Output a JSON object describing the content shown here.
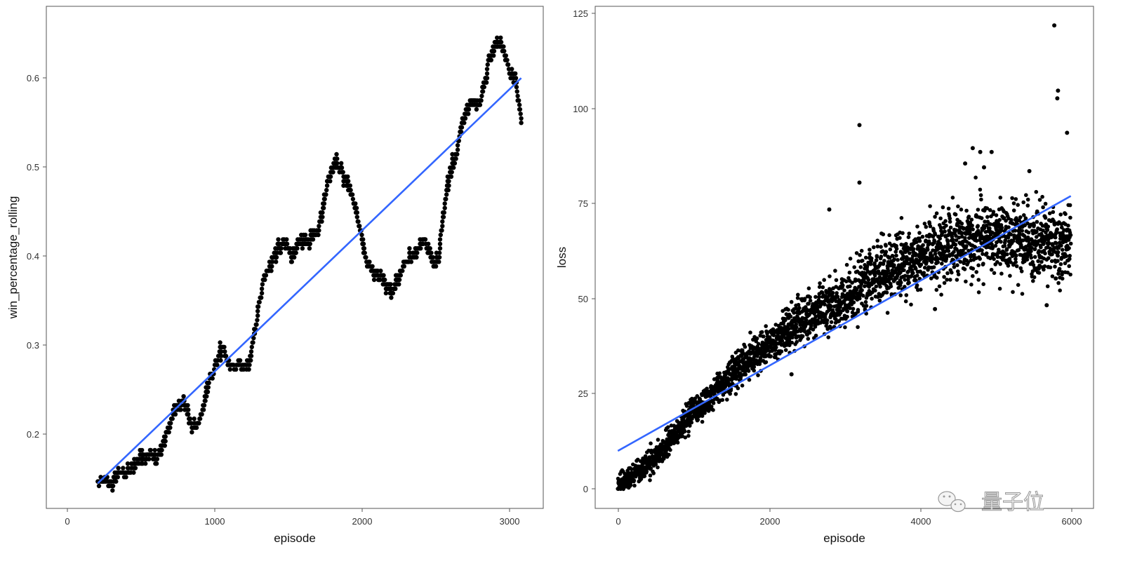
{
  "chart_data": [
    {
      "type": "scatter",
      "xlabel": "episode",
      "ylabel": "win_percentage_rolling",
      "xlim": [
        -150,
        3230
      ],
      "ylim": [
        0.12,
        0.68
      ],
      "xticks": [
        0,
        1000,
        2000,
        3000
      ],
      "yticks": [
        0.2,
        0.3,
        0.4,
        0.5,
        0.6
      ],
      "xtick_labels": [
        "0",
        "1000",
        "2000",
        "3000"
      ],
      "ytick_labels": [
        "0.2",
        "0.3",
        "0.4",
        "0.5",
        "0.6"
      ],
      "grid": false,
      "point_color": "#000000",
      "trend_color": "#3366FF",
      "step_quantum": 0.005,
      "series": [
        {
          "values_knots": [
            [
              200,
              0.15
            ],
            [
              260,
              0.15
            ],
            [
              300,
              0.145
            ],
            [
              350,
              0.16
            ],
            [
              420,
              0.16
            ],
            [
              480,
              0.175
            ],
            [
              560,
              0.18
            ],
            [
              620,
              0.175
            ],
            [
              660,
              0.2
            ],
            [
              720,
              0.225
            ],
            [
              780,
              0.24
            ],
            [
              820,
              0.22
            ],
            [
              860,
              0.21
            ],
            [
              900,
              0.22
            ],
            [
              960,
              0.265
            ],
            [
              1000,
              0.28
            ],
            [
              1050,
              0.3
            ],
            [
              1090,
              0.28
            ],
            [
              1180,
              0.28
            ],
            [
              1230,
              0.28
            ],
            [
              1280,
              0.33
            ],
            [
              1330,
              0.38
            ],
            [
              1380,
              0.39
            ],
            [
              1420,
              0.41
            ],
            [
              1480,
              0.415
            ],
            [
              1520,
              0.4
            ],
            [
              1580,
              0.42
            ],
            [
              1650,
              0.42
            ],
            [
              1700,
              0.43
            ],
            [
              1760,
              0.48
            ],
            [
              1810,
              0.505
            ],
            [
              1850,
              0.5
            ],
            [
              1900,
              0.48
            ],
            [
              1950,
              0.46
            ],
            [
              2010,
              0.41
            ],
            [
              2040,
              0.39
            ],
            [
              2100,
              0.38
            ],
            [
              2160,
              0.37
            ],
            [
              2200,
              0.36
            ],
            [
              2260,
              0.38
            ],
            [
              2300,
              0.4
            ],
            [
              2340,
              0.4
            ],
            [
              2380,
              0.41
            ],
            [
              2420,
              0.42
            ],
            [
              2470,
              0.4
            ],
            [
              2500,
              0.39
            ],
            [
              2520,
              0.4
            ],
            [
              2540,
              0.44
            ],
            [
              2580,
              0.48
            ],
            [
              2640,
              0.52
            ],
            [
              2680,
              0.55
            ],
            [
              2730,
              0.57
            ],
            [
              2800,
              0.57
            ],
            [
              2860,
              0.62
            ],
            [
              2920,
              0.645
            ],
            [
              2960,
              0.63
            ],
            [
              3000,
              0.61
            ],
            [
              3040,
              0.6
            ],
            [
              3080,
              0.555
            ]
          ],
          "trend": [
            [
              200,
              0.148
            ],
            [
              3080,
              0.6
            ]
          ]
        }
      ]
    },
    {
      "type": "scatter",
      "xlabel": "episode",
      "ylabel": "loss",
      "xlim": [
        -300,
        6300
      ],
      "ylim": [
        -5,
        126
      ],
      "xticks": [
        0,
        2000,
        4000,
        6000
      ],
      "yticks": [
        0,
        25,
        50,
        75,
        100,
        125
      ],
      "xtick_labels": [
        "0",
        "2000",
        "4000",
        "6000"
      ],
      "ytick_labels": [
        "0",
        "25",
        "50",
        "75",
        "100",
        "125"
      ],
      "grid": false,
      "point_color": "#000000",
      "trend_color": "#3366FF",
      "series": [
        {
          "cloud_knots": [
            [
              0,
              1,
              1.2
            ],
            [
              500,
              8,
              1.5
            ],
            [
              1000,
              20,
              2.0
            ],
            [
              1500,
              30,
              2.2
            ],
            [
              2000,
              38,
              2.5
            ],
            [
              2500,
              45,
              3.0
            ],
            [
              3000,
              50,
              3.5
            ],
            [
              3500,
              57,
              4.0
            ],
            [
              4000,
              61,
              4.5
            ],
            [
              4500,
              64,
              4.5
            ],
            [
              5000,
              66,
              4.5
            ],
            [
              5500,
              64,
              5.0
            ],
            [
              6000,
              65,
              5.0
            ]
          ],
          "outliers": [
            [
              5780,
              121
            ],
            [
              5830,
              104
            ],
            [
              5820,
              102
            ],
            [
              5950,
              93
            ],
            [
              3200,
              95
            ],
            [
              3200,
              80
            ],
            [
              4700,
              89
            ],
            [
              4800,
              88
            ],
            [
              4950,
              88
            ],
            [
              5450,
              83
            ],
            [
              4850,
              84
            ],
            [
              4600,
              85
            ],
            [
              2800,
              73
            ],
            [
              5680,
              48
            ],
            [
              4200,
              47
            ],
            [
              2300,
              30
            ],
            [
              5700,
              58
            ],
            [
              5800,
              55
            ]
          ],
          "trend": [
            [
              0,
              10
            ],
            [
              6000,
              76.5
            ]
          ]
        }
      ]
    }
  ],
  "watermark": {
    "text": "量子位",
    "icon": "wechat-logo-icon"
  }
}
